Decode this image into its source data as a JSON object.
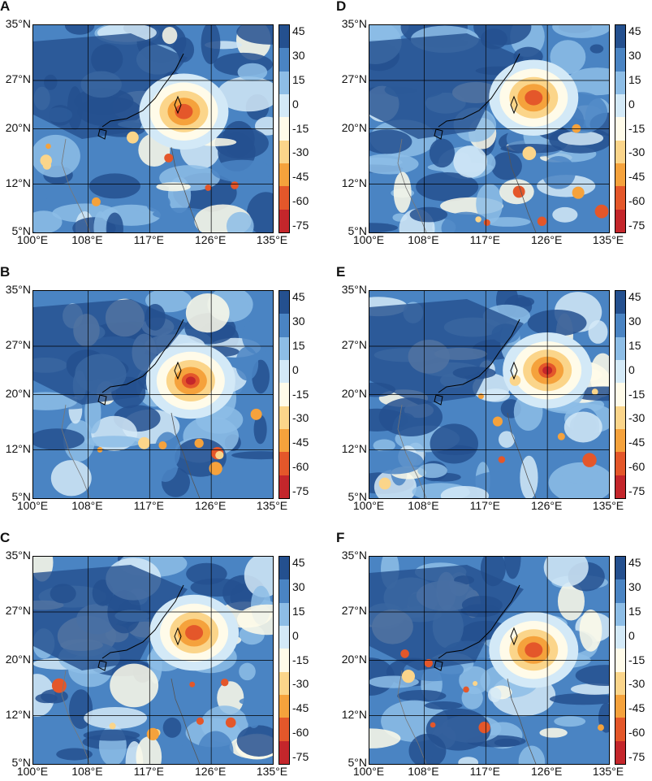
{
  "figure": {
    "panels": [
      {
        "label": "A"
      },
      {
        "label": "B"
      },
      {
        "label": "C"
      },
      {
        "label": "D"
      },
      {
        "label": "E"
      },
      {
        "label": "F"
      }
    ],
    "lat_labels": [
      "35°N",
      "27°N",
      "20°N",
      "12°N",
      "5°N"
    ],
    "lon_labels": [
      "100°E",
      "108°E",
      "117°E",
      "126°E",
      "135°E"
    ],
    "colorbar_ticks": [
      "45",
      "30",
      "15",
      "0",
      "-15",
      "-30",
      "-45",
      "-60",
      "-75"
    ],
    "colorbar_colors": [
      "#24508f",
      "#4a84c3",
      "#8dbde6",
      "#d3e9f7",
      "#fffbe9",
      "#fbd58a",
      "#f5a23c",
      "#e4572a",
      "#c4262b"
    ],
    "storms": {
      "A": {
        "lon": 122.0,
        "lat": 22.5,
        "intensity": "-60"
      },
      "B": {
        "lon": 123.0,
        "lat": 22.0,
        "intensity": "-75"
      },
      "C": {
        "lon": 123.5,
        "lat": 24.0,
        "intensity": "-60"
      },
      "D": {
        "lon": 124.0,
        "lat": 24.5,
        "intensity": "-45"
      },
      "E": {
        "lon": 126.0,
        "lat": 23.5,
        "intensity": "-75"
      },
      "F": {
        "lon": 124.0,
        "lat": 21.5,
        "intensity": "-45"
      }
    }
  }
}
